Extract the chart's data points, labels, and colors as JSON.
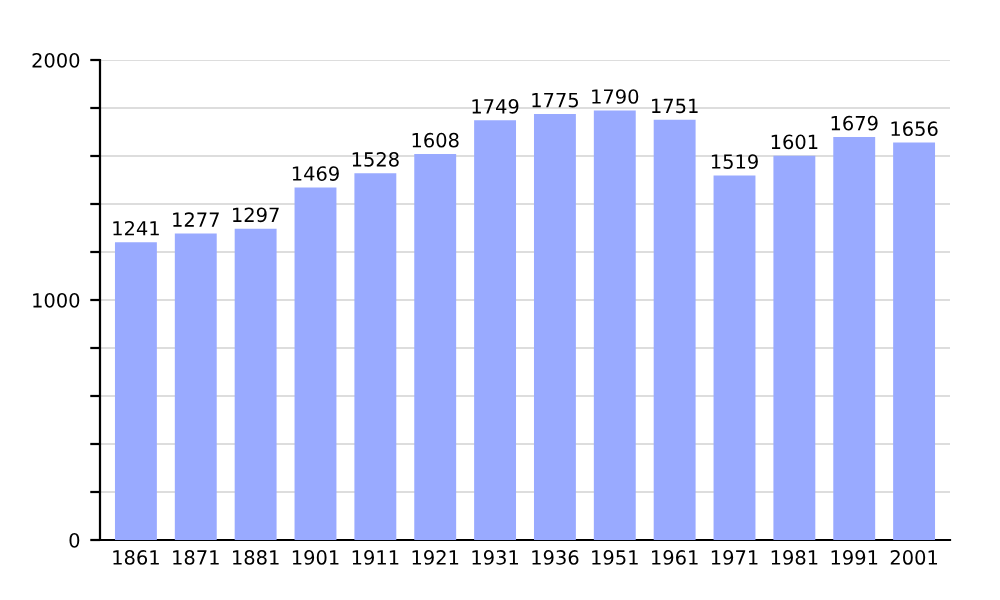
{
  "chart_data": {
    "type": "bar",
    "categories": [
      "1861",
      "1871",
      "1881",
      "1901",
      "1911",
      "1921",
      "1931",
      "1936",
      "1951",
      "1961",
      "1971",
      "1981",
      "1991",
      "2001"
    ],
    "values": [
      1241,
      1277,
      1297,
      1469,
      1528,
      1608,
      1749,
      1775,
      1790,
      1751,
      1519,
      1601,
      1679,
      1656
    ],
    "color": "#99aaff",
    "ylim": [
      0,
      2000
    ],
    "yticks": [
      0,
      {
        "value": 200,
        "label": null
      },
      {
        "value": 400,
        "label": null
      },
      {
        "value": 600,
        "label": null
      },
      {
        "value": 800,
        "label": null
      },
      1000,
      {
        "value": 1200,
        "label": null
      },
      {
        "value": 1400,
        "label": null
      },
      {
        "value": 1600,
        "label": null
      },
      {
        "value": 1800,
        "label": null
      },
      2000
    ],
    "grid": "y",
    "data_labels": true
  }
}
